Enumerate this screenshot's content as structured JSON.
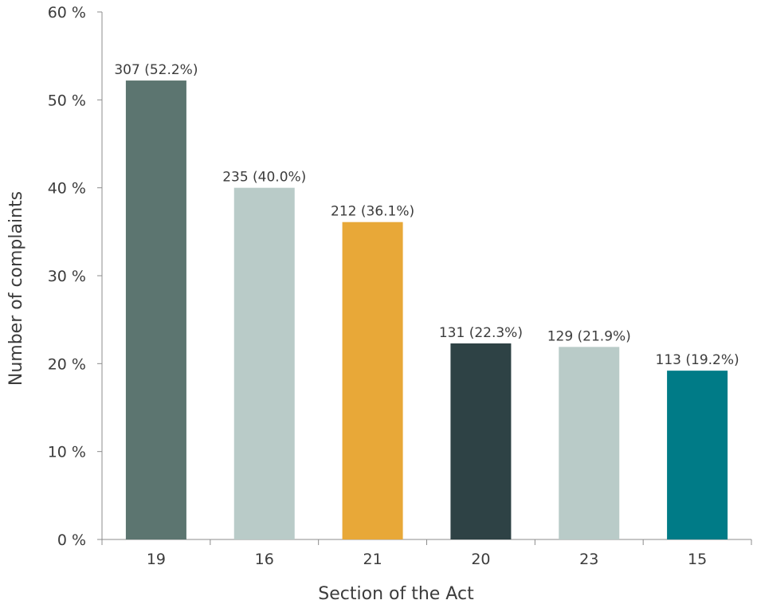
{
  "chart_data": {
    "type": "bar",
    "xlabel": "Section of the Act",
    "ylabel": "Number of complaints",
    "categories": [
      "19",
      "16",
      "21",
      "20",
      "23",
      "15"
    ],
    "values": [
      52.2,
      40.0,
      36.1,
      22.3,
      21.9,
      19.2
    ],
    "counts": [
      307,
      235,
      212,
      131,
      129,
      113
    ],
    "data_labels": [
      "307 (52.2%)",
      "235 (40.0%)",
      "212 (36.1%)",
      "131 (22.3%)",
      "129 (21.9%)",
      "113 (19.2%)"
    ],
    "colors": [
      "#5c7570",
      "#b9cbc8",
      "#e8a838",
      "#2e4245",
      "#b9cbc8",
      "#007b87"
    ],
    "ylim": [
      0,
      60
    ],
    "yticks": [
      0,
      10,
      20,
      30,
      40,
      50,
      60
    ],
    "ytick_labels": [
      "0 %",
      "10 %",
      "20 %",
      "30 %",
      "40 %",
      "50 %",
      "60 %"
    ],
    "grid": false,
    "legend": "none"
  }
}
